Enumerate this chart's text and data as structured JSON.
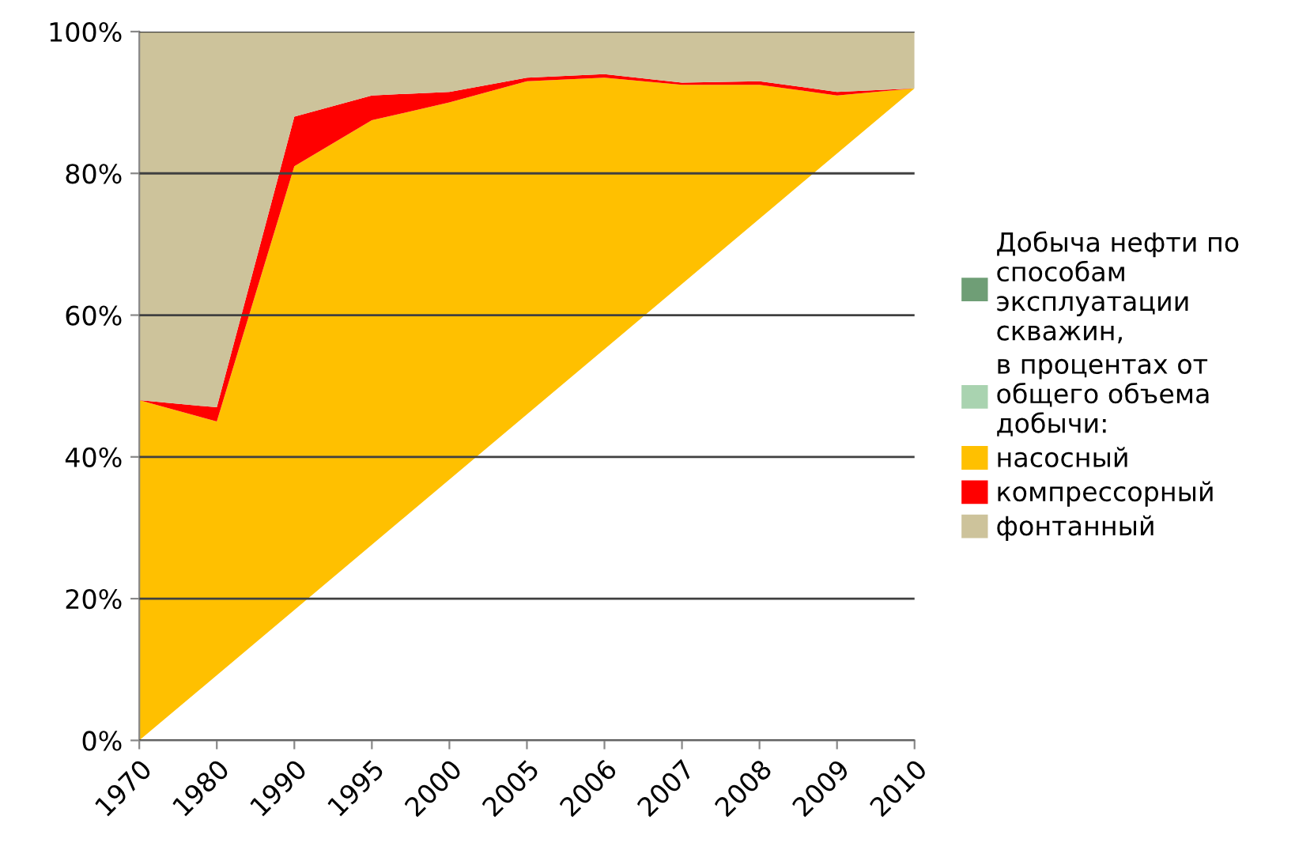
{
  "chart_data": {
    "type": "area",
    "stacked": true,
    "categories": [
      "1970",
      "1980",
      "1990",
      "1995",
      "2000",
      "2005",
      "2006",
      "2007",
      "2008",
      "2009",
      "2010"
    ],
    "series": [
      {
        "name": "Добыча нефти по\nспособам\nэксплуатации\nскважин,",
        "color": "#6f9e76",
        "values": [
          null,
          null,
          null,
          null,
          null,
          null,
          null,
          null,
          null,
          null,
          null
        ]
      },
      {
        "name": "в процентах от\nобщего объема\nдобычи:",
        "color": "#a9d3b0",
        "values": [
          null,
          null,
          null,
          null,
          null,
          null,
          null,
          null,
          null,
          null,
          null
        ]
      },
      {
        "name": "насосный",
        "color": "#ffc000",
        "values": [
          48,
          45,
          81,
          87.5,
          90,
          93,
          93.5,
          92.5,
          92.5,
          91,
          92
        ]
      },
      {
        "name": "компрессорный",
        "color": "#ff0000",
        "values": [
          0,
          2,
          7,
          3.5,
          1.5,
          0.5,
          0.5,
          0.3,
          0.5,
          0.5,
          0
        ]
      },
      {
        "name": "фонтанный",
        "color": "#cdc39b",
        "values": [
          52,
          53,
          12,
          9,
          8.5,
          6.5,
          6,
          7.2,
          7,
          8.5,
          8
        ]
      }
    ],
    "ylim": [
      0,
      100
    ],
    "yticks": [
      {
        "value": 0,
        "label": "0%"
      },
      {
        "value": 20,
        "label": "20%"
      },
      {
        "value": 40,
        "label": "40%"
      },
      {
        "value": 60,
        "label": "60%"
      },
      {
        "value": 80,
        "label": "80%"
      },
      {
        "value": 100,
        "label": "100%"
      }
    ],
    "grid": "y",
    "legend": "right"
  }
}
